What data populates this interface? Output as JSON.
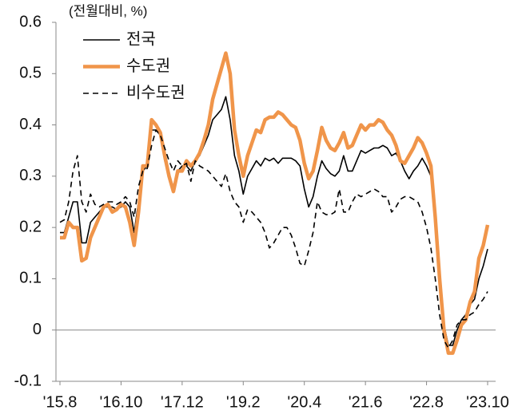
{
  "chart_data": {
    "type": "line",
    "ylabel": "(전월대비, %)",
    "categories": [
      "'15.8",
      null,
      null,
      null,
      null,
      null,
      null,
      null,
      null,
      null,
      null,
      null,
      null,
      null,
      "'16.10",
      null,
      null,
      null,
      null,
      null,
      null,
      null,
      null,
      null,
      null,
      null,
      null,
      null,
      "'17.12",
      null,
      null,
      null,
      null,
      null,
      null,
      null,
      null,
      null,
      null,
      null,
      null,
      null,
      "'19.2",
      null,
      null,
      null,
      null,
      null,
      null,
      null,
      null,
      null,
      null,
      null,
      null,
      null,
      "'20.4",
      null,
      null,
      null,
      null,
      null,
      null,
      null,
      null,
      null,
      null,
      null,
      null,
      null,
      "'21.6",
      null,
      null,
      null,
      null,
      null,
      null,
      null,
      null,
      null,
      null,
      null,
      null,
      null,
      "'22.8",
      null,
      null,
      null,
      null,
      null,
      null,
      null,
      null,
      null,
      null,
      null,
      null,
      null,
      "'23.10"
    ],
    "series": [
      {
        "name": "전국",
        "color": "#000000",
        "line_width": 1.6,
        "dashed": false,
        "values": [
          0.19,
          0.19,
          0.22,
          0.25,
          0.25,
          0.17,
          0.17,
          0.21,
          0.22,
          0.23,
          0.24,
          0.24,
          0.24,
          0.235,
          0.24,
          0.25,
          0.24,
          0.19,
          0.25,
          0.31,
          0.32,
          0.39,
          0.39,
          0.38,
          0.33,
          0.3,
          0.28,
          0.31,
          0.32,
          0.32,
          0.31,
          0.33,
          0.34,
          0.36,
          0.38,
          0.41,
          0.42,
          0.43,
          0.455,
          0.41,
          0.34,
          0.31,
          0.265,
          0.3,
          0.315,
          0.33,
          0.32,
          0.335,
          0.33,
          0.335,
          0.325,
          0.335,
          0.335,
          0.335,
          0.33,
          0.32,
          0.275,
          0.24,
          0.26,
          0.3,
          0.33,
          0.315,
          0.305,
          0.3,
          0.31,
          0.34,
          0.31,
          0.31,
          0.33,
          0.35,
          0.345,
          0.35,
          0.355,
          0.355,
          0.36,
          0.355,
          0.34,
          0.345,
          0.33,
          0.31,
          0.295,
          0.31,
          0.32,
          0.335,
          0.32,
          0.3,
          0.22,
          0.1,
          0.01,
          -0.03,
          -0.03,
          0.0,
          0.02,
          0.03,
          0.05,
          0.06,
          0.1,
          0.125,
          0.158
        ]
      },
      {
        "name": "수도권",
        "color": "#f0954a",
        "line_width": 4.5,
        "dashed": false,
        "values": [
          0.18,
          0.18,
          0.21,
          0.2,
          0.2,
          0.135,
          0.14,
          0.18,
          0.2,
          0.22,
          0.24,
          0.245,
          0.23,
          0.235,
          0.245,
          0.24,
          0.21,
          0.165,
          0.23,
          0.32,
          0.32,
          0.41,
          0.4,
          0.385,
          0.34,
          0.3,
          0.27,
          0.31,
          0.31,
          0.33,
          0.32,
          0.33,
          0.345,
          0.37,
          0.4,
          0.45,
          0.48,
          0.51,
          0.54,
          0.5,
          0.39,
          0.34,
          0.3,
          0.34,
          0.365,
          0.39,
          0.385,
          0.41,
          0.415,
          0.415,
          0.425,
          0.42,
          0.41,
          0.4,
          0.395,
          0.37,
          0.325,
          0.295,
          0.31,
          0.35,
          0.395,
          0.37,
          0.355,
          0.35,
          0.365,
          0.385,
          0.355,
          0.36,
          0.38,
          0.4,
          0.39,
          0.4,
          0.4,
          0.41,
          0.405,
          0.39,
          0.38,
          0.36,
          0.33,
          0.325,
          0.34,
          0.355,
          0.375,
          0.365,
          0.345,
          0.32,
          0.22,
          0.1,
          0.0,
          -0.045,
          -0.045,
          -0.02,
          0.01,
          0.02,
          0.055,
          0.075,
          0.14,
          0.165,
          0.205
        ]
      },
      {
        "name": "비수도권",
        "color": "#000000",
        "line_width": 1.6,
        "dashed": true,
        "values": [
          0.21,
          0.215,
          0.25,
          0.31,
          0.34,
          0.25,
          0.23,
          0.265,
          0.245,
          0.24,
          0.245,
          0.25,
          0.25,
          0.245,
          0.25,
          0.26,
          0.25,
          0.22,
          0.28,
          0.31,
          0.315,
          0.36,
          0.39,
          0.38,
          0.355,
          0.33,
          0.31,
          0.33,
          0.32,
          0.325,
          0.29,
          0.33,
          0.32,
          0.315,
          0.31,
          0.3,
          0.29,
          0.28,
          0.305,
          0.27,
          0.25,
          0.24,
          0.21,
          0.235,
          0.23,
          0.22,
          0.21,
          0.19,
          0.16,
          0.17,
          0.185,
          0.2,
          0.2,
          0.185,
          0.16,
          0.13,
          0.125,
          0.155,
          0.19,
          0.25,
          0.23,
          0.225,
          0.225,
          0.23,
          0.275,
          0.23,
          0.23,
          0.25,
          0.265,
          0.26,
          0.265,
          0.27,
          0.275,
          0.27,
          0.26,
          0.26,
          0.23,
          0.24,
          0.255,
          0.26,
          0.26,
          0.255,
          0.25,
          0.23,
          0.2,
          0.16,
          0.1,
          0.03,
          -0.02,
          -0.035,
          -0.02,
          0.01,
          0.02,
          0.02,
          0.03,
          0.035,
          0.05,
          0.06,
          0.075
        ]
      }
    ],
    "ylim": [
      -0.1,
      0.6
    ],
    "yticks": [
      -0.1,
      0,
      0.1,
      0.2,
      0.3,
      0.4,
      0.5,
      0.6
    ],
    "zero_line": true
  }
}
